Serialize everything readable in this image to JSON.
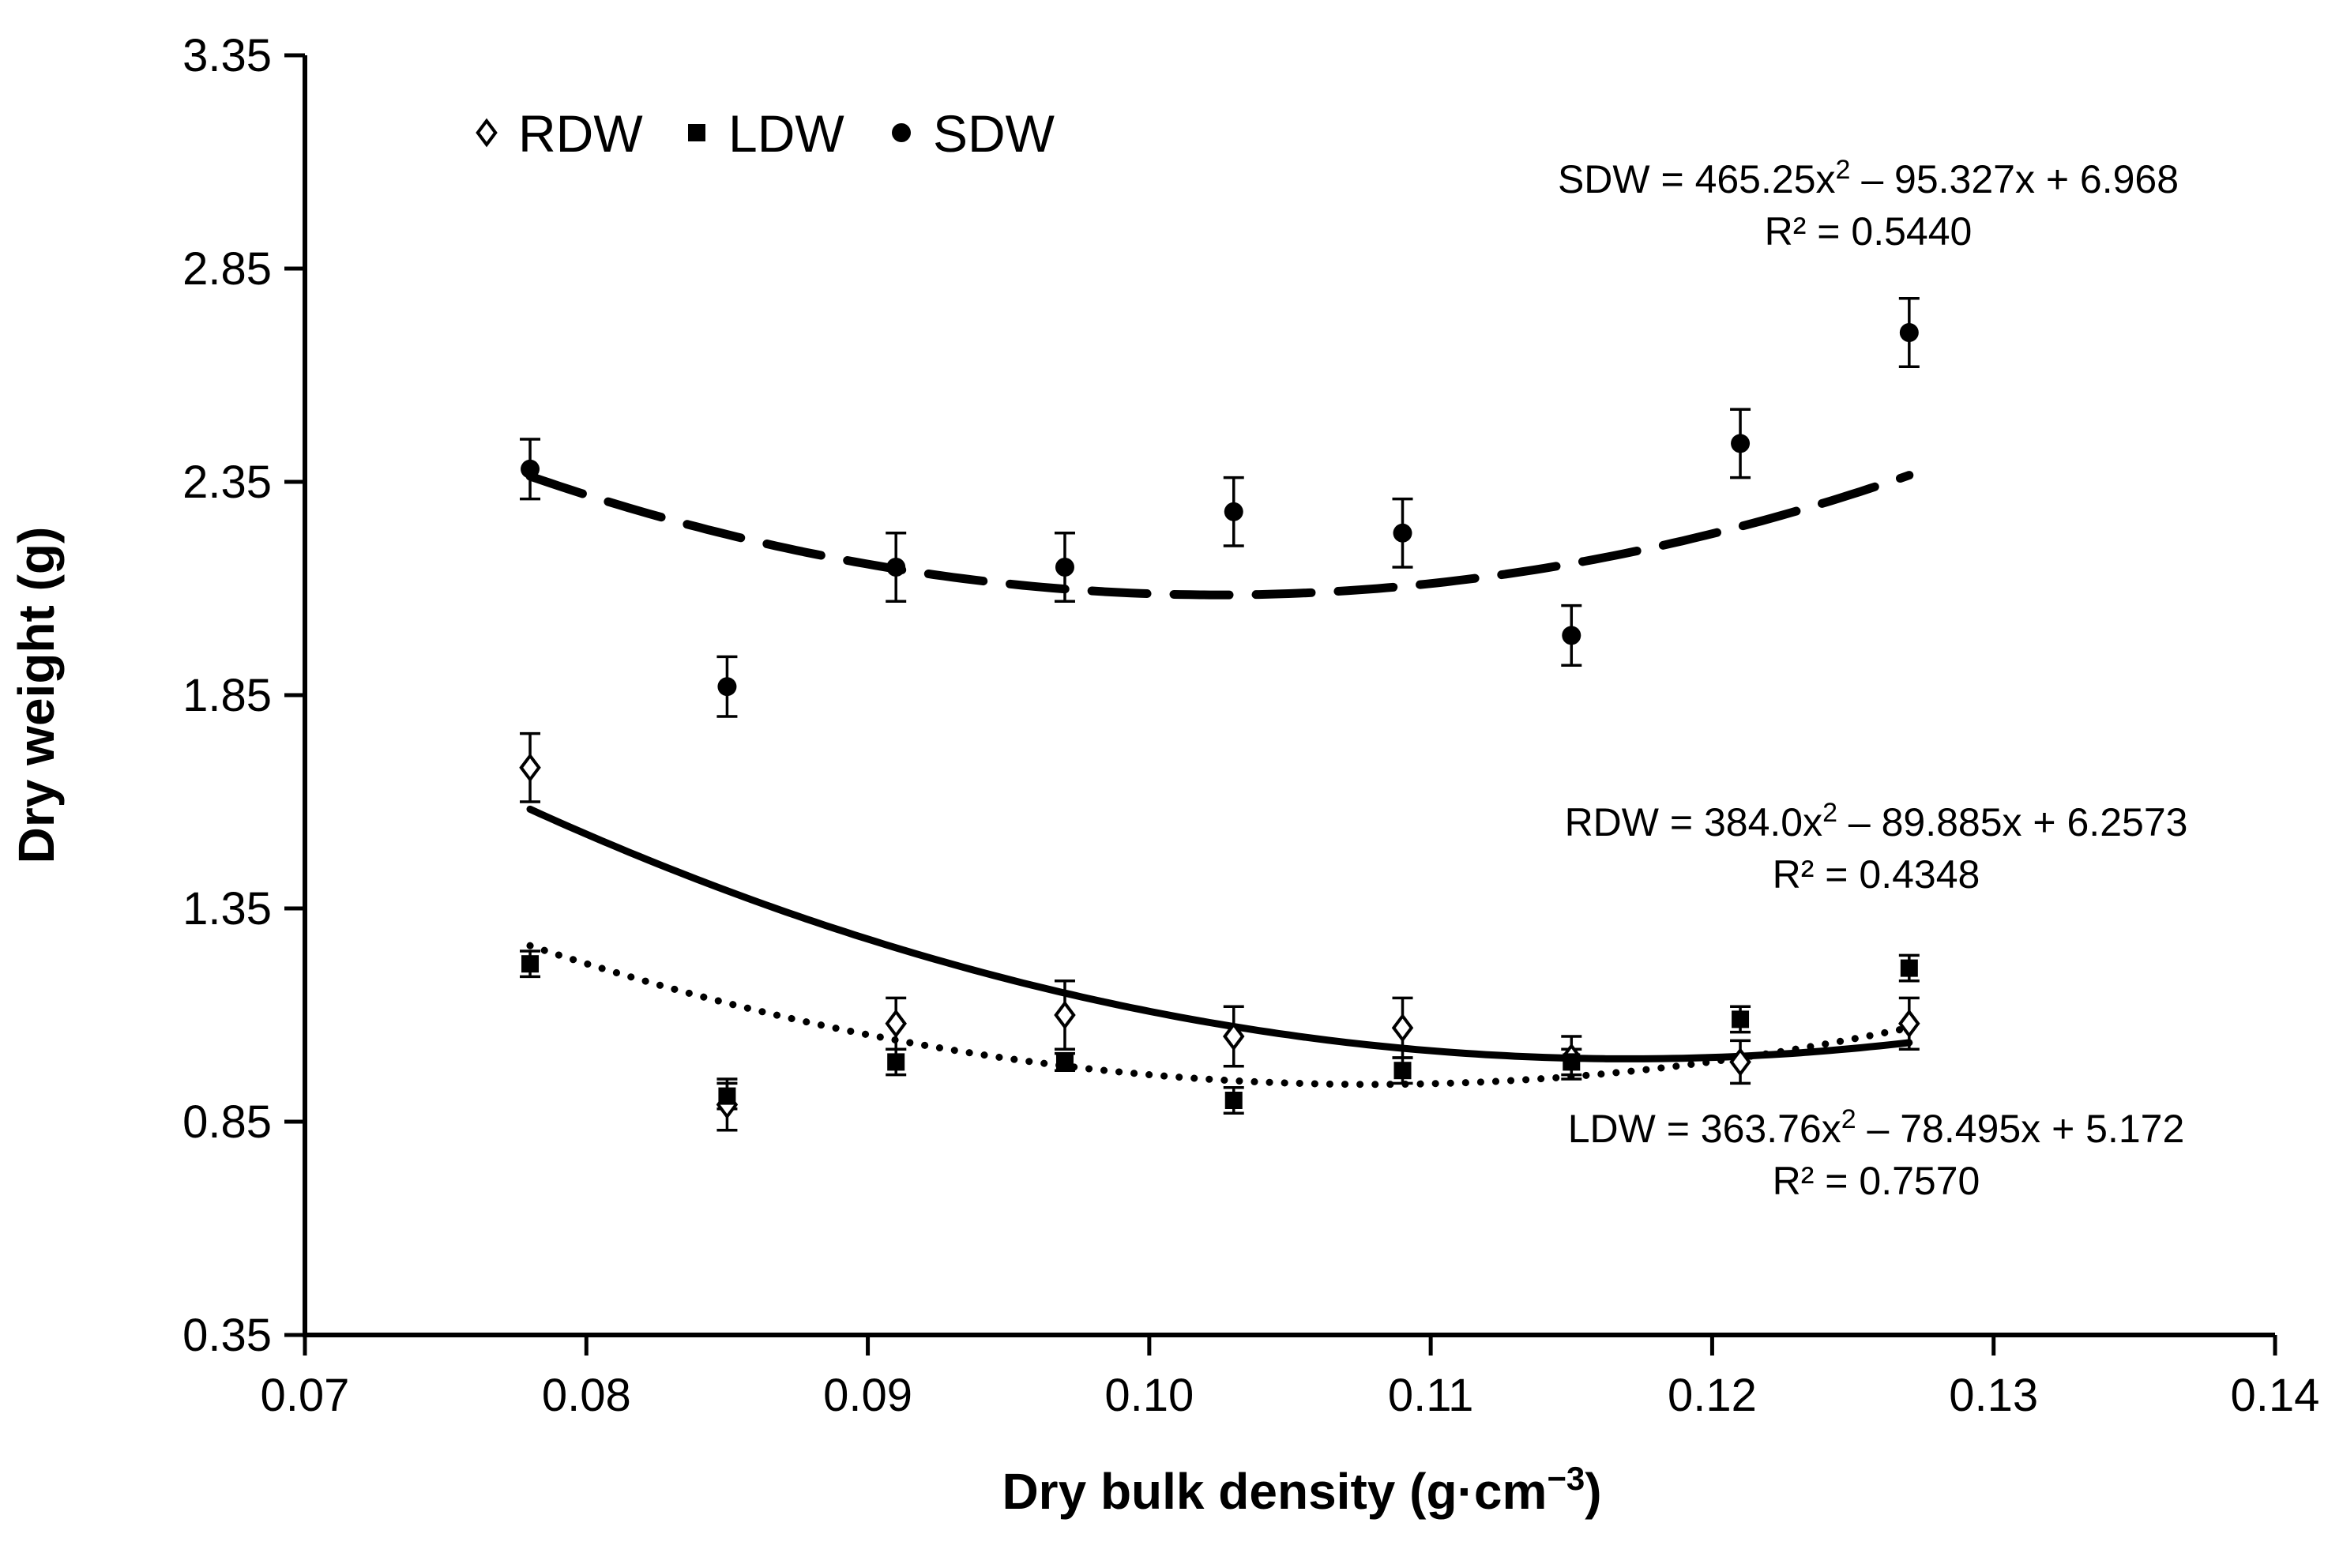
{
  "chart_data": {
    "type": "scatter",
    "title": "",
    "xlabel": "Dry bulk density (g·cm",
    "xlabel_sup": "−3",
    "xlabel_close": ")",
    "ylabel": "Dry weight (g)",
    "xlim": [
      0.07,
      0.14
    ],
    "ylim": [
      0.35,
      3.35
    ],
    "x_ticks": [
      0.07,
      0.08,
      0.09,
      0.1,
      0.11,
      0.12,
      0.13,
      0.14
    ],
    "x_tick_labels": [
      "0.07",
      "0.08",
      "0.09",
      "0.10",
      "0.11",
      "0.12",
      "0.13",
      "0.14"
    ],
    "y_ticks": [
      0.35,
      0.85,
      1.35,
      1.85,
      2.35,
      2.85,
      3.35
    ],
    "y_tick_labels": [
      "0.35",
      "0.85",
      "1.35",
      "1.85",
      "2.35",
      "2.85",
      "3.35"
    ],
    "grid": false,
    "legend_position": "top-left",
    "x": [
      0.078,
      0.085,
      0.091,
      0.097,
      0.103,
      0.109,
      0.115,
      0.121,
      0.127
    ],
    "series": [
      {
        "name": "RDW",
        "marker": "diamond-open",
        "y": [
          1.68,
          0.89,
          1.08,
          1.1,
          1.05,
          1.07,
          1.0,
          0.99,
          1.08
        ],
        "err": [
          0.08,
          0.06,
          0.06,
          0.08,
          0.07,
          0.07,
          0.05,
          0.05,
          0.06
        ],
        "fit": {
          "a": 384.0,
          "b": -89.885,
          "c": 6.2573,
          "style": "solid"
        },
        "equation": {
          "prefix": "RDW  = 384.0x",
          "sup": "2",
          "suffix": " – 89.885x  + 6.2573",
          "r2": "R² = 0.4348"
        }
      },
      {
        "name": "LDW",
        "marker": "square-filled",
        "y": [
          1.22,
          0.91,
          0.99,
          0.99,
          0.9,
          0.97,
          0.99,
          1.09,
          1.21
        ],
        "err": [
          0.03,
          0.03,
          0.03,
          0.02,
          0.03,
          0.03,
          0.03,
          0.03,
          0.03
        ],
        "fit": {
          "a": 363.76,
          "b": -78.495,
          "c": 5.172,
          "style": "dotted"
        },
        "equation": {
          "prefix": "LDW  = 363.76x",
          "sup": "2",
          "suffix": " – 78.495x  + 5.172",
          "r2": "R² = 0.7570"
        }
      },
      {
        "name": "SDW",
        "marker": "circle-filled",
        "y": [
          2.38,
          1.87,
          2.15,
          2.15,
          2.28,
          2.23,
          1.99,
          2.44,
          2.7
        ],
        "err": [
          0.07,
          0.07,
          0.08,
          0.08,
          0.08,
          0.08,
          0.07,
          0.08,
          0.08
        ],
        "fit": {
          "a": 465.25,
          "b": -95.327,
          "c": 6.968,
          "style": "dashed"
        },
        "equation": {
          "prefix": "SDW = 465.25x",
          "sup": "2",
          "suffix": " – 95.327x  + 6.968",
          "r2": "R² = 0.5440"
        }
      }
    ]
  }
}
